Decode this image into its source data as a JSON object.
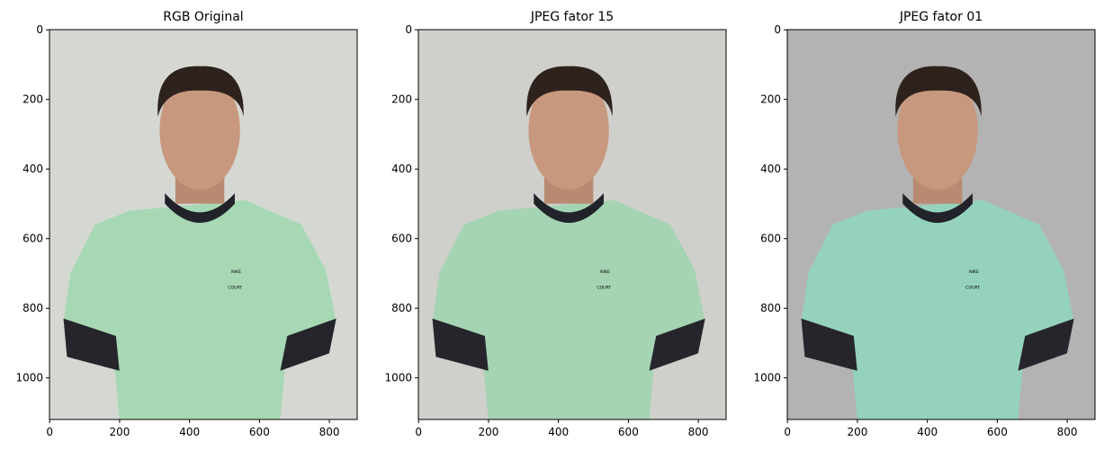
{
  "chart_data": [
    {
      "type": "image",
      "title": "RGB Original",
      "xlim": [
        -0.5,
        879.5
      ],
      "ylim": [
        1119.5,
        -0.5
      ],
      "xticks": [
        0,
        200,
        400,
        600,
        800
      ],
      "yticks": [
        0,
        200,
        400,
        600,
        800,
        1000
      ]
    },
    {
      "type": "image",
      "title": "JPEG fator 15",
      "xlim": [
        -0.5,
        879.5
      ],
      "ylim": [
        1119.5,
        -0.5
      ],
      "xticks": [
        0,
        200,
        400,
        600,
        800
      ],
      "yticks": [
        0,
        200,
        400,
        600,
        800,
        1000
      ]
    },
    {
      "type": "image",
      "title": "JPEG fator 01",
      "xlim": [
        -0.5,
        879.5
      ],
      "ylim": [
        1119.5,
        -0.5
      ],
      "xticks": [
        0,
        200,
        400,
        600,
        800
      ],
      "yticks": [
        0,
        200,
        400,
        600,
        800,
        1000
      ]
    }
  ]
}
